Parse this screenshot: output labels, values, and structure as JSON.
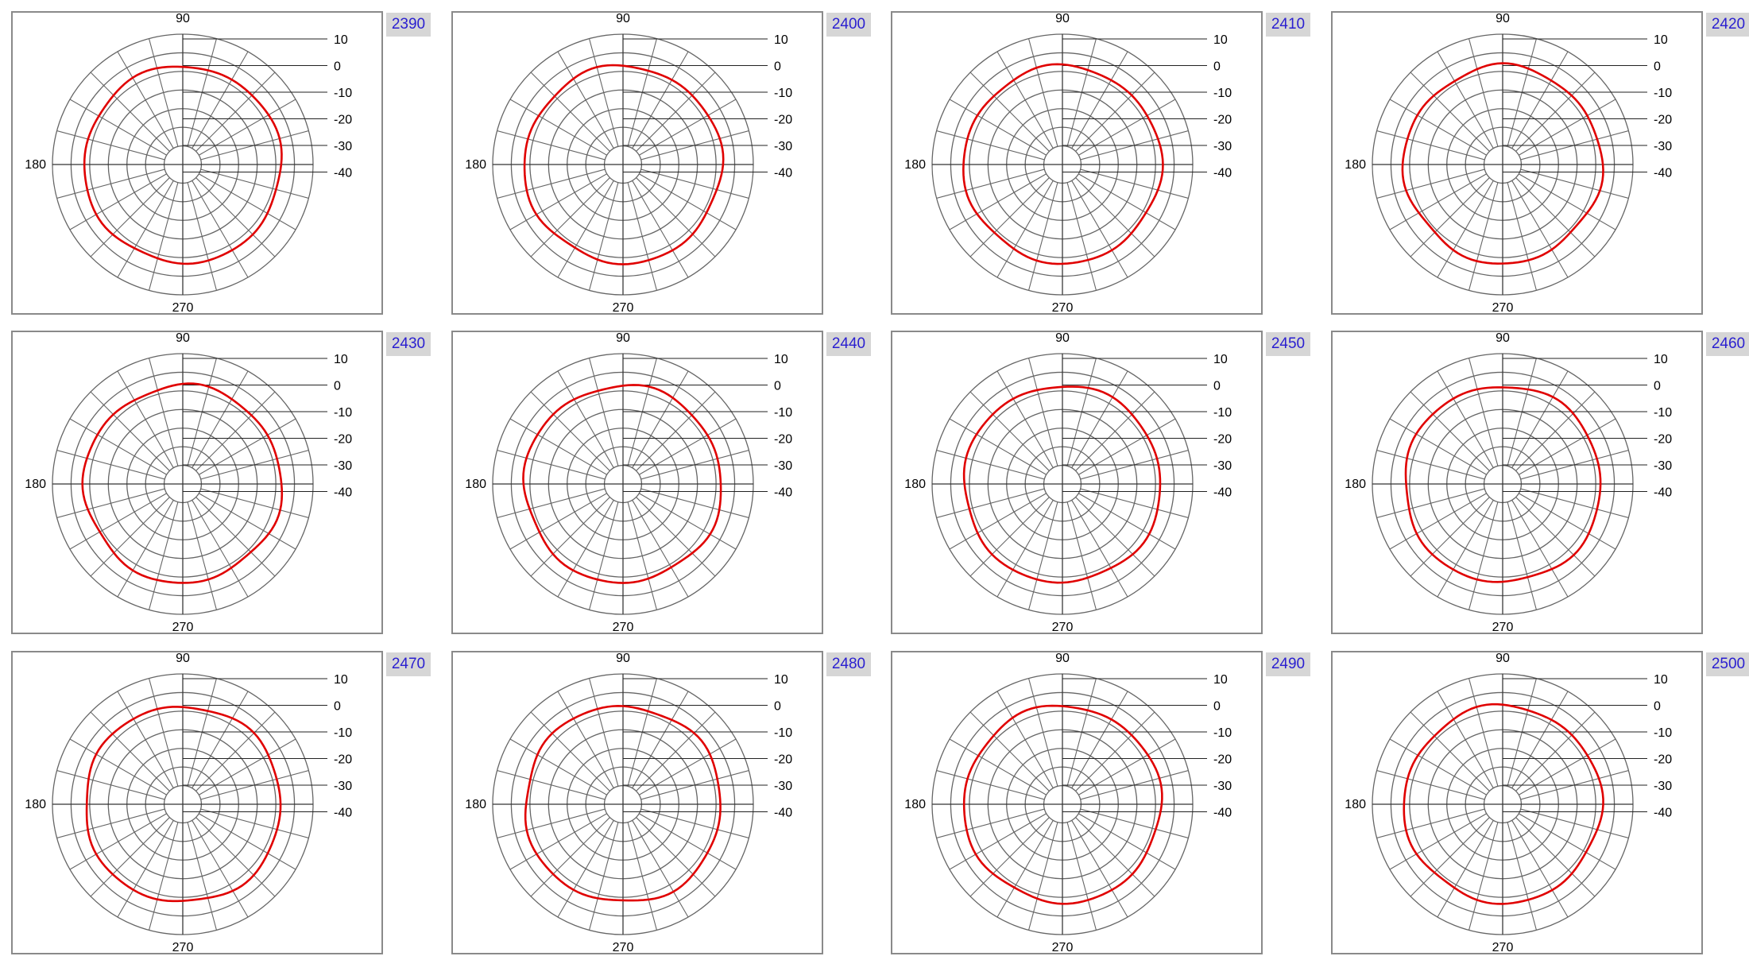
{
  "radial_scale": {
    "ticks": [
      "10",
      "0",
      "-10",
      "-20",
      "-30",
      "-40"
    ],
    "tick_values": [
      10,
      0,
      -10,
      -20,
      -30,
      -40
    ],
    "min": -50,
    "max": 20
  },
  "angle_labels": {
    "top": "90",
    "left": "180",
    "bottom": "270"
  },
  "colors": {
    "trace": "#e00000",
    "grid": "#666666",
    "frame": "#8a8a8a",
    "tag_bg": "#d6d6d6",
    "tag_text": "#2a1fd0"
  },
  "chart_data": [
    {
      "type": "polar",
      "label": "2390",
      "series": [
        {
          "r_db": 0,
          "amplitude": 1.0,
          "phase": 0.0
        }
      ]
    },
    {
      "type": "polar",
      "label": "2400",
      "series": [
        {
          "r_db": 0,
          "amplitude": 1.2,
          "phase": 0.6
        }
      ]
    },
    {
      "type": "polar",
      "label": "2410",
      "series": [
        {
          "r_db": 0,
          "amplitude": 1.1,
          "phase": 1.2
        }
      ]
    },
    {
      "type": "polar",
      "label": "2420",
      "series": [
        {
          "r_db": 0,
          "amplitude": 1.4,
          "phase": 1.8
        }
      ]
    },
    {
      "type": "polar",
      "label": "2430",
      "series": [
        {
          "r_db": 0,
          "amplitude": 1.3,
          "phase": 2.4
        }
      ]
    },
    {
      "type": "polar",
      "label": "2440",
      "series": [
        {
          "r_db": 0,
          "amplitude": 1.2,
          "phase": 3.0
        }
      ]
    },
    {
      "type": "polar",
      "label": "2450",
      "series": [
        {
          "r_db": 0,
          "amplitude": 1.0,
          "phase": 3.6
        }
      ]
    },
    {
      "type": "polar",
      "label": "2460",
      "series": [
        {
          "r_db": 0,
          "amplitude": 1.1,
          "phase": 4.2
        }
      ]
    },
    {
      "type": "polar",
      "label": "2470",
      "series": [
        {
          "r_db": 0,
          "amplitude": 1.2,
          "phase": 4.8
        }
      ]
    },
    {
      "type": "polar",
      "label": "2480",
      "series": [
        {
          "r_db": 0,
          "amplitude": 1.3,
          "phase": 5.4
        }
      ]
    },
    {
      "type": "polar",
      "label": "2490",
      "series": [
        {
          "r_db": 0,
          "amplitude": 1.1,
          "phase": 0.3
        }
      ]
    },
    {
      "type": "polar",
      "label": "2500",
      "series": [
        {
          "r_db": 0,
          "amplitude": 1.2,
          "phase": 0.9
        }
      ]
    }
  ]
}
